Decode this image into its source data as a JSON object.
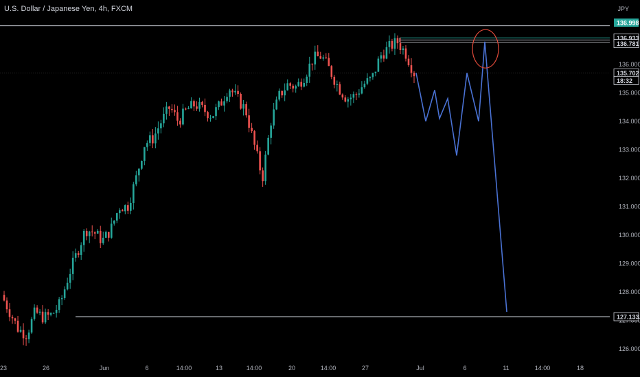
{
  "header": {
    "title": "U.S. Dollar / Japanese Yen, 4h, FXCM",
    "currency": "JPY"
  },
  "colors": {
    "background": "#000000",
    "bull": "#26a69a",
    "bear": "#ef5350",
    "projection": "#4a72d4",
    "circle": "#e04a3a",
    "teal_line": "#26a69a",
    "level_line": "#d1d4dc"
  },
  "chart_data": {
    "type": "candlestick",
    "symbol": "U.S. Dollar / Japanese Yen",
    "timeframe": "4h",
    "ylim": [
      125.8,
      137.4
    ],
    "y_ticks": [
      "126.000",
      "127.000",
      "128.000",
      "129.000",
      "130.000",
      "131.000",
      "132.000",
      "133.000",
      "134.000",
      "135.000",
      "136.000"
    ],
    "x_ticks": [
      "23",
      "26",
      "Jun",
      "6",
      "14:00",
      "13",
      "14:00",
      "20",
      "14:00",
      "27",
      "Jul",
      "6",
      "11",
      "14:00",
      "18"
    ],
    "price_labels": {
      "high": "136.998",
      "level_1": "136.933",
      "level_2": "136.781",
      "current": "135.702",
      "countdown": "18:32",
      "support": "127.133"
    },
    "levels": [
      136.998,
      136.933,
      136.781,
      127.133
    ],
    "candle_path": [
      127.9,
      127.3,
      126.7,
      126.5,
      127.3,
      127.1,
      127.2,
      127.6,
      128.6,
      129.4,
      130.2,
      130.1,
      129.8,
      130.2,
      131.0,
      131.0,
      132.0,
      133.2,
      133.4,
      134.0,
      134.5,
      134.0,
      134.4,
      134.6,
      134.4,
      134.2,
      134.6,
      135.2,
      134.8,
      134.4,
      133.2,
      132.0,
      134.0,
      134.9,
      135.3,
      135.2,
      135.6,
      136.2,
      136.3,
      135.8,
      135.2,
      134.8,
      134.9,
      135.3,
      135.5,
      136.3,
      136.6,
      136.8,
      136.4,
      135.7
    ],
    "projection_path": [
      135.7,
      134.0,
      135.1,
      134.1,
      134.8,
      132.8,
      135.7,
      134.0,
      136.8,
      127.3
    ]
  }
}
